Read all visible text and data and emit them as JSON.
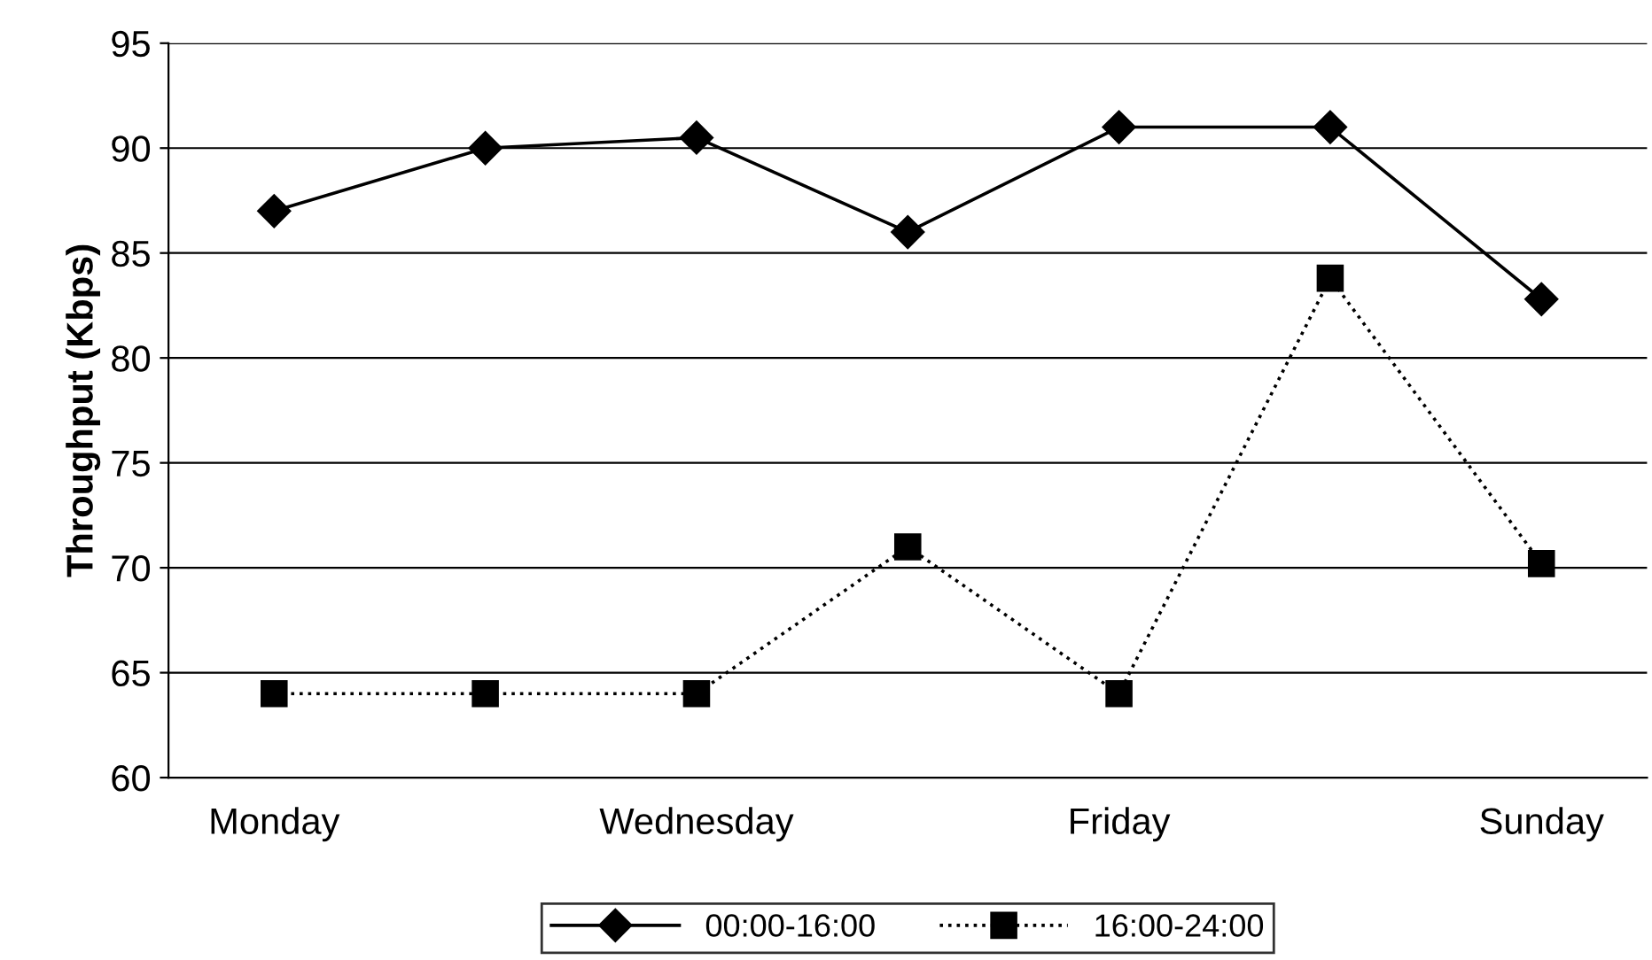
{
  "chart_data": {
    "type": "line",
    "ylabel": "Throughput (Kbps)",
    "categories": [
      "Monday",
      null,
      "Wednesday",
      null,
      "Friday",
      null,
      "Sunday"
    ],
    "series": [
      {
        "name": "00:00-16:00",
        "color": "#000000",
        "marker": "diamond",
        "line_style": "solid",
        "values": [
          87,
          90,
          90.5,
          86,
          91,
          91,
          82.8
        ]
      },
      {
        "name": "16:00-24:00",
        "color": "#000000",
        "marker": "square",
        "line_style": "dotted",
        "values": [
          64,
          64,
          64,
          71,
          64,
          83.8,
          70.2
        ]
      }
    ],
    "ylim": [
      60,
      95
    ],
    "yticks": [
      60,
      65,
      70,
      75,
      80,
      85,
      90,
      95
    ],
    "grid": "y",
    "legend": "bottom"
  }
}
